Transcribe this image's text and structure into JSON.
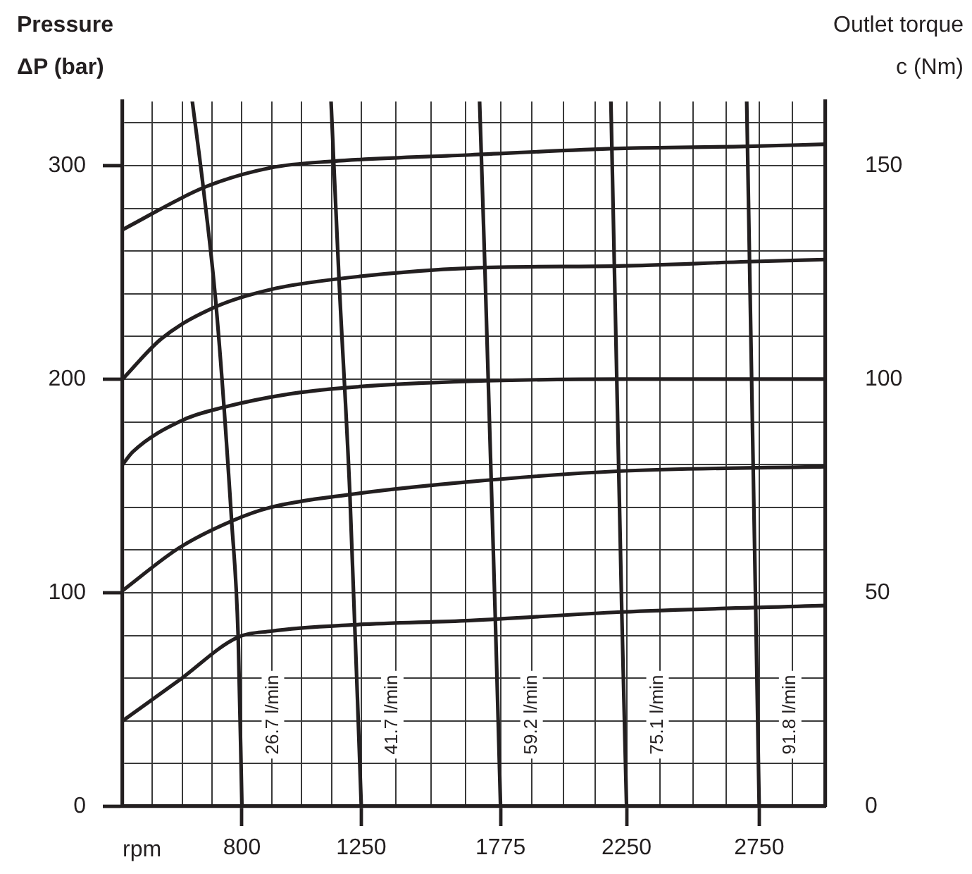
{
  "chart_data": {
    "type": "line",
    "xlabel": "rpm",
    "ylabel": "Pressure\nΔP (bar)",
    "y2label": "Outlet torque\nc (Nm)",
    "xlim": [
      350,
      3000
    ],
    "xticks": [
      {
        "value": 350,
        "label": null
      },
      {
        "value": 462.5,
        "label": null
      },
      {
        "value": 575,
        "label": null
      },
      {
        "value": 687.5,
        "label": null
      },
      800,
      {
        "value": 912.5,
        "label": null
      },
      {
        "value": 1025,
        "label": null
      },
      {
        "value": 1137.5,
        "label": null
      },
      1250,
      {
        "value": 1381.25,
        "label": null
      },
      {
        "value": 1512.5,
        "label": null
      },
      {
        "value": 1643.75,
        "label": null
      },
      1775,
      {
        "value": 1893.75,
        "label": null
      },
      {
        "value": 2012.5,
        "label": null
      },
      {
        "value": 2131.25,
        "label": null
      },
      2250,
      {
        "value": 2375,
        "label": null
      },
      {
        "value": 2500,
        "label": null
      },
      {
        "value": 2625,
        "label": null
      },
      2750,
      {
        "value": 2875,
        "label": null
      },
      {
        "value": 3000,
        "label": null
      }
    ],
    "ylim": [
      0,
      330
    ],
    "yticks": [
      0,
      {
        "value": 20,
        "label": null
      },
      {
        "value": 40,
        "label": null
      },
      {
        "value": 60,
        "label": null
      },
      {
        "value": 80,
        "label": null
      },
      100,
      {
        "value": 120,
        "label": null
      },
      {
        "value": 140,
        "label": null
      },
      {
        "value": 160,
        "label": null
      },
      {
        "value": 180,
        "label": null
      },
      200,
      {
        "value": 220,
        "label": null
      },
      {
        "value": 240,
        "label": null
      },
      {
        "value": 260,
        "label": null
      },
      {
        "value": 280,
        "label": null
      },
      300,
      {
        "value": 320,
        "label": null
      }
    ],
    "y2lim": [
      0,
      165
    ],
    "y2ticks": [
      0,
      50,
      100,
      150
    ],
    "grid": true,
    "legend": false,
    "marker": "none",
    "line_style": "solid",
    "series": [
      {
        "color": "#231f20",
        "x": [
          350,
          662,
          909,
          1141,
          1661,
          2220,
          2706,
          3000
        ],
        "values": [
          270,
          290,
          299,
          302,
          305,
          308,
          309,
          310
        ]
      },
      {
        "color": "#231f20",
        "x": [
          350,
          497,
          703,
          909,
          1166,
          1661,
          2220,
          2706,
          3000
        ],
        "values": [
          200,
          219,
          234,
          242,
          247,
          252,
          253,
          255,
          256
        ]
      },
      {
        "color": "#231f20",
        "x": [
          350,
          389,
          580,
          737,
          976,
          1191,
          1661,
          2239,
          3000
        ],
        "values": [
          160,
          166,
          181,
          187,
          193,
          196,
          199,
          200,
          200
        ]
      },
      {
        "color": "#231f20",
        "x": [
          350,
          563,
          770,
          909,
          1207,
          1661,
          2230,
          3000
        ],
        "values": [
          101,
          121,
          134,
          140,
          146,
          152,
          157,
          159
        ]
      },
      {
        "color": "#231f20",
        "x": [
          350,
          563,
          782,
          909,
          1224,
          1661,
          2230,
          3000
        ],
        "values": [
          40,
          59,
          79,
          82,
          85,
          87,
          91,
          94
        ]
      },
      {
        "name": "26.7 l/min",
        "color": "#231f20",
        "x": [
          613,
          654,
          703,
          761,
          786,
          800
        ],
        "values": [
          330,
          290,
          234,
          134,
          79,
          0
        ]
      },
      {
        "name": "41.7 l/min",
        "color": "#231f20",
        "x": [
          1136,
          1166,
          1207,
          1250
        ],
        "values": [
          330,
          247,
          146,
          0
        ]
      },
      {
        "name": "59.2 l/min",
        "color": "#231f20",
        "x": [
          1696,
          1716,
          1755,
          1775
        ],
        "values": [
          330,
          252,
          89,
          0
        ]
      },
      {
        "name": "75.1 l/min",
        "color": "#231f20",
        "x": [
          2191,
          2232,
          2250
        ],
        "values": [
          330,
          91,
          0
        ]
      },
      {
        "name": "91.8 l/min",
        "color": "#231f20",
        "x": [
          2703,
          2750
        ],
        "values": [
          330,
          0
        ]
      }
    ]
  }
}
